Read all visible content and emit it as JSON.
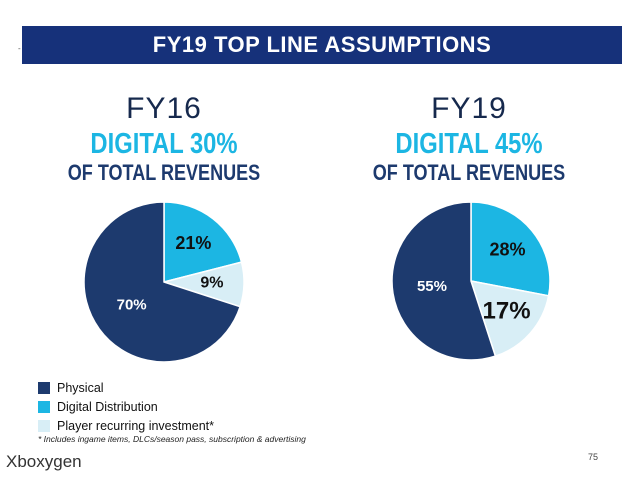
{
  "slide": {
    "title": "FY19 TOP LINE ASSUMPTIONS",
    "mark": "-",
    "page_number": "75",
    "watermark": "Xboxygen",
    "footnote": "* Includes ingame items, DLCs/season pass, subscription & advertising"
  },
  "colors": {
    "banner": "#16317a",
    "physical": "#1d3a6e",
    "digital": "#1cb6e3",
    "player": "#d8eef6"
  },
  "chart_data": [
    {
      "type": "pie",
      "year_label": "FY16",
      "headline": "DIGITAL 30%",
      "subheadline": "OF TOTAL REVENUES",
      "slices": [
        {
          "name": "Physical",
          "value": 70,
          "label": "70%"
        },
        {
          "name": "Digital Distribution",
          "value": 21,
          "label": "21%"
        },
        {
          "name": "Player recurring investment*",
          "value": 9,
          "label": "9%"
        }
      ]
    },
    {
      "type": "pie",
      "year_label": "FY19",
      "headline": "DIGITAL 45%",
      "subheadline": "OF TOTAL REVENUES",
      "slices": [
        {
          "name": "Physical",
          "value": 55,
          "label": "55%"
        },
        {
          "name": "Digital Distribution",
          "value": 28,
          "label": "28%"
        },
        {
          "name": "Player recurring investment*",
          "value": 17,
          "label": "17%"
        }
      ]
    }
  ],
  "legend": [
    {
      "label": "Physical",
      "color": "#1d3a6e"
    },
    {
      "label": "Digital Distribution",
      "color": "#1cb6e3"
    },
    {
      "label": "Player recurring investment*",
      "color": "#d8eef6"
    }
  ]
}
